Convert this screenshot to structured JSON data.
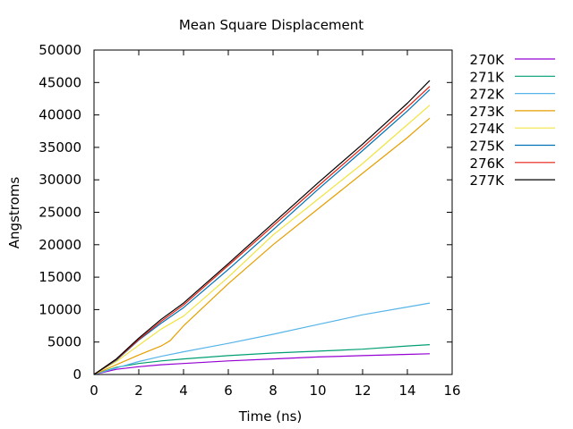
{
  "chart_data": {
    "type": "line",
    "title": "Mean Square Displacement",
    "xlabel": "Time (ns)",
    "ylabel": "Angstroms",
    "xlim": [
      0,
      16
    ],
    "ylim": [
      0,
      50000
    ],
    "xticks": [
      0,
      2,
      4,
      6,
      8,
      10,
      12,
      14,
      16
    ],
    "yticks": [
      0,
      5000,
      10000,
      15000,
      20000,
      25000,
      30000,
      35000,
      40000,
      45000,
      50000
    ],
    "grid": false,
    "legend_position": "outside-right",
    "series": [
      {
        "name": "270K",
        "color": "#9400d3",
        "x": [
          0,
          1,
          2,
          3,
          4,
          6,
          8,
          10,
          12,
          14,
          15
        ],
        "y": [
          0,
          800,
          1200,
          1500,
          1700,
          2100,
          2400,
          2700,
          2900,
          3100,
          3200
        ]
      },
      {
        "name": "271K",
        "color": "#009e73",
        "x": [
          0,
          1,
          2,
          3,
          4,
          6,
          8,
          10,
          12,
          14,
          15
        ],
        "y": [
          0,
          1100,
          1700,
          2100,
          2400,
          2900,
          3300,
          3600,
          3900,
          4400,
          4600
        ]
      },
      {
        "name": "272K",
        "color": "#56b4e9",
        "x": [
          0,
          1,
          2,
          3,
          4,
          6,
          8,
          10,
          12,
          14,
          15
        ],
        "y": [
          0,
          1000,
          2000,
          2800,
          3500,
          4800,
          6200,
          7700,
          9200,
          10400,
          11000
        ]
      },
      {
        "name": "273K",
        "color": "#e69f00",
        "x": [
          0,
          1,
          2,
          3,
          3.4,
          4,
          6,
          8,
          10,
          12,
          14,
          15
        ],
        "y": [
          0,
          1500,
          3000,
          4400,
          5200,
          7500,
          14000,
          20000,
          25500,
          31000,
          36500,
          39500
        ]
      },
      {
        "name": "274K",
        "color": "#f0e442",
        "x": [
          0,
          1,
          2,
          3,
          4,
          6,
          8,
          10,
          12,
          14,
          15
        ],
        "y": [
          0,
          2000,
          4500,
          7000,
          9000,
          15000,
          21500,
          27000,
          32500,
          38500,
          41500
        ]
      },
      {
        "name": "275K",
        "color": "#0072b2",
        "x": [
          0,
          1,
          2,
          3,
          4,
          6,
          8,
          10,
          12,
          14,
          15
        ],
        "y": [
          0,
          2200,
          5300,
          7900,
          10300,
          16200,
          22300,
          28500,
          34500,
          40600,
          43900
        ]
      },
      {
        "name": "276K",
        "color": "#e51e10",
        "x": [
          0,
          1,
          2,
          3,
          4,
          6,
          8,
          10,
          12,
          14,
          15
        ],
        "y": [
          0,
          2300,
          5400,
          8200,
          10700,
          16800,
          22900,
          29000,
          35000,
          41200,
          44400
        ]
      },
      {
        "name": "277K",
        "color": "#000000",
        "x": [
          0,
          1,
          2,
          3,
          4,
          6,
          8,
          10,
          12,
          14,
          15
        ],
        "y": [
          0,
          2400,
          5600,
          8500,
          11000,
          17100,
          23300,
          29500,
          35500,
          41800,
          45300
        ]
      }
    ]
  }
}
